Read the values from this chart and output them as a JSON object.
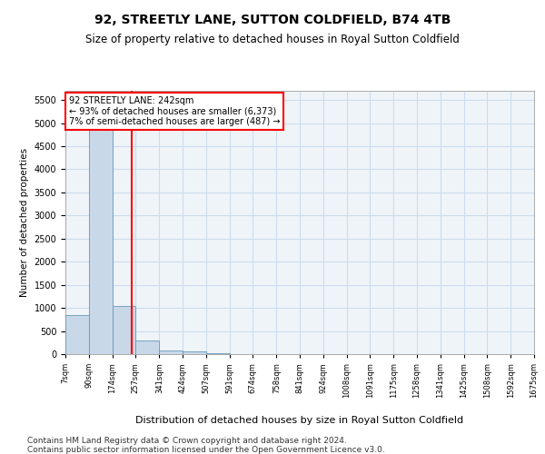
{
  "title": "92, STREETLY LANE, SUTTON COLDFIELD, B74 4TB",
  "subtitle": "Size of property relative to detached houses in Royal Sutton Coldfield",
  "xlabel": "Distribution of detached houses by size in Royal Sutton Coldfield",
  "ylabel": "Number of detached properties",
  "footnote1": "Contains HM Land Registry data © Crown copyright and database right 2024.",
  "footnote2": "Contains public sector information licensed under the Open Government Licence v3.0.",
  "property_label": "92 STREETLY LANE: 242sqm",
  "annotation_line1": "← 93% of detached houses are smaller (6,373)",
  "annotation_line2": "7% of semi-detached houses are larger (487) →",
  "bar_left_edges": [
    7,
    90,
    174,
    257,
    341,
    424,
    507,
    591,
    674,
    758,
    841,
    924,
    1008,
    1091,
    1175,
    1258,
    1341,
    1425,
    1508,
    1592
  ],
  "bar_widths": [
    83,
    84,
    83,
    84,
    83,
    83,
    84,
    83,
    84,
    83,
    83,
    84,
    83,
    84,
    83,
    83,
    84,
    83,
    84,
    83
  ],
  "bar_heights": [
    850,
    5520,
    1050,
    290,
    80,
    60,
    28,
    0,
    0,
    0,
    0,
    0,
    0,
    0,
    0,
    0,
    0,
    0,
    0,
    0
  ],
  "bar_color": "#c8d8e8",
  "bar_edgecolor": "#6699bb",
  "vline_x": 242,
  "vline_color": "red",
  "ylim": [
    0,
    5700
  ],
  "xlim": [
    7,
    1675
  ],
  "yticks": [
    0,
    500,
    1000,
    1500,
    2000,
    2500,
    3000,
    3500,
    4000,
    4500,
    5000,
    5500
  ],
  "xtick_labels": [
    "7sqm",
    "90sqm",
    "174sqm",
    "257sqm",
    "341sqm",
    "424sqm",
    "507sqm",
    "591sqm",
    "674sqm",
    "758sqm",
    "841sqm",
    "924sqm",
    "1008sqm",
    "1091sqm",
    "1175sqm",
    "1258sqm",
    "1341sqm",
    "1425sqm",
    "1508sqm",
    "1592sqm",
    "1675sqm"
  ],
  "xtick_positions": [
    7,
    90,
    174,
    257,
    341,
    424,
    507,
    591,
    674,
    758,
    841,
    924,
    1008,
    1091,
    1175,
    1258,
    1341,
    1425,
    1508,
    1592,
    1675
  ],
  "grid_color": "#ccddee",
  "background_color": "#eef4f8",
  "title_fontsize": 10,
  "subtitle_fontsize": 8.5,
  "footnote_fontsize": 6.5
}
